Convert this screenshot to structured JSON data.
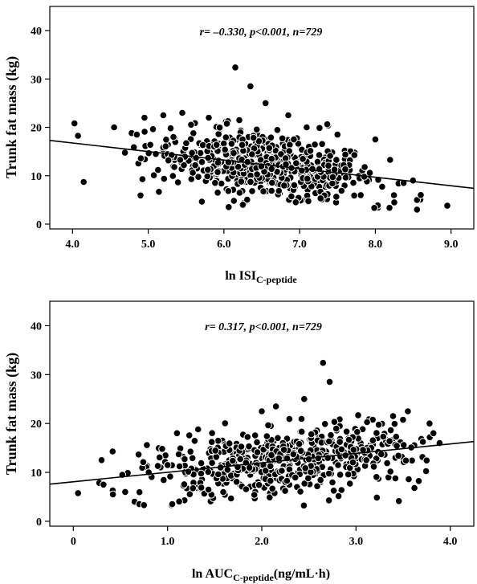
{
  "chart_data": [
    {
      "type": "scatter",
      "xlabel_main": "ln ISI",
      "xlabel_sub": "C-peptide",
      "xlabel_suffix": "",
      "ylabel": "Trunk fat mass (kg)",
      "annotation": "r= –0.330, p<0.001, n=729",
      "xlim": [
        3.7,
        9.3
      ],
      "ylim": [
        -1,
        45
      ],
      "xticks": [
        "4.0",
        "5.0",
        "6.0",
        "7.0",
        "8.0",
        "9.0"
      ],
      "yticks": [
        "0",
        "10",
        "20",
        "30",
        "40"
      ],
      "fit_line": {
        "x": [
          3.7,
          9.3
        ],
        "y": [
          17.3,
          7.4
        ]
      },
      "points_sample": [
        [
          4.55,
          20.0
        ],
        [
          4.85,
          18.5
        ],
        [
          4.95,
          22.0
        ],
        [
          5.1,
          14.5
        ],
        [
          5.2,
          22.5
        ],
        [
          5.45,
          23.0
        ],
        [
          5.8,
          22.0
        ],
        [
          6.15,
          32.4
        ],
        [
          6.35,
          28.5
        ],
        [
          6.55,
          25.0
        ],
        [
          6.85,
          22.5
        ],
        [
          7.5,
          18.5
        ],
        [
          8.0,
          17.5
        ],
        [
          8.55,
          5.0
        ],
        [
          8.6,
          6.0
        ],
        [
          8.95,
          3.8
        ],
        [
          8.55,
          3.0
        ],
        [
          6.25,
          4.0
        ],
        [
          8.25,
          4.5
        ]
      ]
    },
    {
      "type": "scatter",
      "xlabel_main": "ln AUC",
      "xlabel_sub": "C-peptide",
      "xlabel_suffix": "(ng/mL·h)",
      "ylabel": "Trunk fat mass (kg)",
      "annotation": "r= 0.317, p<0.001, n=729",
      "xlim": [
        -0.25,
        4.25
      ],
      "ylim": [
        -1,
        45
      ],
      "xticks": [
        "0",
        "1.0",
        "2.0",
        "3.0",
        "4.0"
      ],
      "yticks": [
        "0",
        "10",
        "20",
        "30",
        "40"
      ],
      "fit_line": {
        "x": [
          -0.25,
          4.25
        ],
        "y": [
          7.6,
          16.3
        ]
      },
      "points_sample": [
        [
          0.3,
          12.5
        ],
        [
          0.32,
          7.5
        ],
        [
          0.42,
          5.5
        ],
        [
          0.52,
          9.5
        ],
        [
          0.55,
          6.0
        ],
        [
          0.65,
          4.0
        ],
        [
          0.7,
          3.5
        ],
        [
          0.75,
          3.3
        ],
        [
          0.8,
          10.0
        ],
        [
          1.0,
          11.5
        ],
        [
          1.05,
          3.5
        ],
        [
          1.1,
          18.0
        ],
        [
          2.0,
          22.5
        ],
        [
          2.15,
          23.5
        ],
        [
          2.45,
          25.0
        ],
        [
          2.65,
          32.4
        ],
        [
          2.72,
          28.5
        ],
        [
          3.55,
          22.5
        ],
        [
          3.62,
          6.8
        ],
        [
          3.78,
          20.0
        ]
      ]
    }
  ]
}
